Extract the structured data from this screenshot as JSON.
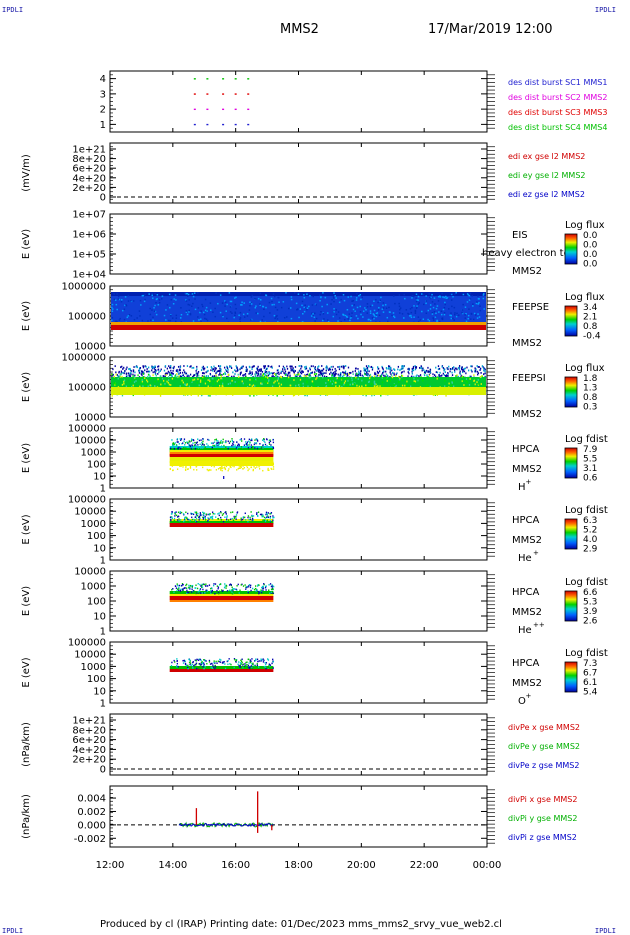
{
  "page": {
    "corner_label": "IPDLI",
    "spacecraft": "MMS2",
    "datetime": "17/Mar/2019 12:00",
    "footer": "Produced by cl (IRAP)   Printing date: 01/Dec/2023   mms_mms2_srvy_vue_web2.cl"
  },
  "colors": {
    "blue": "#0000c8",
    "green": "#00c800",
    "red": "#d00000",
    "magenta": "#c000c0",
    "dark_red": "#c80000"
  },
  "time_axis": {
    "range_hours": [
      12,
      24
    ],
    "ticks": [
      "12:00",
      "14:00",
      "16:00",
      "18:00",
      "20:00",
      "22:00",
      "00:00"
    ]
  },
  "chart_data": [
    {
      "id": "burst",
      "type": "scatter",
      "yticks": [
        "1",
        "2",
        "3",
        "4"
      ],
      "ylim": [
        0.5,
        4.5
      ],
      "legend": [
        {
          "text": "des dist burst SC1 MMS1",
          "color": "#2020d0"
        },
        {
          "text": "des dist burst SC2 MMS2",
          "color": "#e000e0"
        },
        {
          "text": "des dist burst SC3 MMS3",
          "color": "#e00000"
        },
        {
          "text": "des dist burst SC4 MMS4",
          "color": "#00c000"
        }
      ],
      "series": [
        {
          "y": 4,
          "color": "#00c000",
          "times": [
            14.7,
            15.1,
            15.6,
            16.0,
            16.4
          ]
        },
        {
          "y": 3,
          "color": "#e00000",
          "times": [
            14.7,
            15.1,
            15.6,
            16.0,
            16.4
          ]
        },
        {
          "y": 2,
          "color": "#e000e0",
          "times": [
            14.7,
            15.1,
            15.6,
            16.0,
            16.4
          ]
        },
        {
          "y": 1,
          "color": "#2020d0",
          "times": [
            14.7,
            15.1,
            15.6,
            16.0,
            16.4
          ]
        }
      ]
    },
    {
      "id": "edi",
      "type": "line",
      "ylabel": "(mV/m)",
      "yticks": [
        "0",
        "2e+20",
        "4e+20",
        "6e+20",
        "8e+20",
        "1e+21"
      ],
      "legend": [
        {
          "text": "edi ex gse l2 MMS2",
          "color": "#d00000"
        },
        {
          "text": "edi ey gse l2 MMS2",
          "color": "#00b000"
        },
        {
          "text": "edi ez gse l2 MMS2",
          "color": "#0000c8"
        }
      ]
    },
    {
      "id": "eis",
      "type": "heatmap",
      "ylabel": "E (eV)",
      "yticks": [
        "1e+04",
        "1e+05",
        "1e+06",
        "1e+07"
      ],
      "instrument": "EIS",
      "sc": "MMS2",
      "overlay_text": "heavy electron tof",
      "cbar_title": "Log flux",
      "cbar_ticks": [
        "0.0",
        "0.0",
        "0.0",
        "0.0"
      ]
    },
    {
      "id": "feepse",
      "type": "heatmap",
      "ylabel": "E (eV)",
      "yticks": [
        "10000",
        "100000",
        "1000000"
      ],
      "instrument": "FEEPSE",
      "sc": "MMS2",
      "cbar_title": "Log flux",
      "cbar_ticks": [
        "3.4",
        "2.1",
        "0.8",
        "-0.4"
      ],
      "time_range": [
        12,
        24
      ]
    },
    {
      "id": "feepsi",
      "type": "heatmap",
      "ylabel": "E (eV)",
      "yticks": [
        "10000",
        "100000",
        "1000000"
      ],
      "instrument": "FEEPSI",
      "sc": "MMS2",
      "cbar_title": "Log flux",
      "cbar_ticks": [
        "1.8",
        "1.3",
        "0.8",
        "0.3"
      ],
      "time_range": [
        12,
        24
      ]
    },
    {
      "id": "hpca_h",
      "type": "heatmap",
      "ylabel": "E (eV)",
      "yticks": [
        "1",
        "10",
        "100",
        "1000",
        "10000",
        "100000"
      ],
      "instrument": "HPCA",
      "sc": "MMS2",
      "species": "H",
      "charge": "+",
      "cbar_title": "Log fdist",
      "cbar_ticks": [
        "7.9",
        "5.5",
        "3.1",
        "0.6"
      ],
      "time_range": [
        13.9,
        17.2
      ]
    },
    {
      "id": "hpca_he",
      "type": "heatmap",
      "ylabel": "E (eV)",
      "yticks": [
        "1",
        "10",
        "100",
        "1000",
        "10000",
        "100000"
      ],
      "instrument": "HPCA",
      "sc": "MMS2",
      "species": "He",
      "charge": "+",
      "cbar_title": "Log fdist",
      "cbar_ticks": [
        "6.3",
        "5.2",
        "4.0",
        "2.9"
      ],
      "time_range": [
        13.9,
        17.2
      ]
    },
    {
      "id": "hpca_he2",
      "type": "heatmap",
      "ylabel": "E (eV)",
      "yticks": [
        "1",
        "10",
        "100",
        "1000",
        "10000"
      ],
      "instrument": "HPCA",
      "sc": "MMS2",
      "species": "He",
      "charge": "++",
      "cbar_title": "Log fdist",
      "cbar_ticks": [
        "6.6",
        "5.3",
        "3.9",
        "2.6"
      ],
      "time_range": [
        13.9,
        17.2
      ]
    },
    {
      "id": "hpca_o",
      "type": "heatmap",
      "ylabel": "E (eV)",
      "yticks": [
        "1",
        "10",
        "100",
        "1000",
        "10000",
        "100000"
      ],
      "instrument": "HPCA",
      "sc": "MMS2",
      "species": "O",
      "charge": "+",
      "cbar_title": "Log fdist",
      "cbar_ticks": [
        "7.3",
        "6.7",
        "6.1",
        "5.4"
      ],
      "time_range": [
        13.9,
        17.2
      ]
    },
    {
      "id": "divpe",
      "type": "line",
      "ylabel": "(nPa/km)",
      "yticks": [
        "0",
        "2e+20",
        "4e+20",
        "6e+20",
        "8e+20",
        "1e+21"
      ],
      "legend": [
        {
          "text": "divPe x gse MMS2",
          "color": "#d00000"
        },
        {
          "text": "divPe y gse MMS2",
          "color": "#00b000"
        },
        {
          "text": "divPe z gse MMS2",
          "color": "#0000c8"
        }
      ]
    },
    {
      "id": "divpi",
      "type": "line",
      "ylabel": "(nPa/km)",
      "yticks": [
        "-0.002",
        "0.000",
        "0.002",
        "0.004"
      ],
      "ylim": [
        -0.0033,
        0.0058
      ],
      "legend": [
        {
          "text": "divPi x gse MMS2",
          "color": "#d00000"
        },
        {
          "text": "divPi y gse MMS2",
          "color": "#00b000"
        },
        {
          "text": "divPi z gse MMS2",
          "color": "#0000c8"
        }
      ],
      "time_range": [
        14.2,
        17.2
      ],
      "spikes": [
        {
          "t": 14.75,
          "value": 0.0025,
          "color": "#d00000"
        },
        {
          "t": 16.7,
          "value": 0.005,
          "color": "#d00000"
        },
        {
          "t": 16.7,
          "value": -0.0012,
          "color": "#d00000"
        },
        {
          "t": 17.15,
          "value": -0.0008,
          "color": "#d00000"
        }
      ]
    }
  ]
}
